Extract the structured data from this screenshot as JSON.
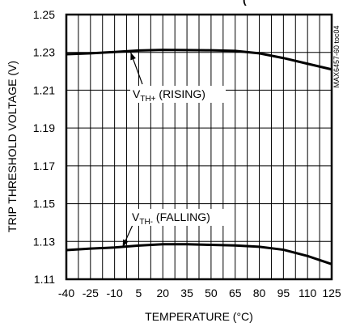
{
  "chart_data": {
    "type": "line",
    "title": "(",
    "xlabel": "TEMPERATURE (°C)",
    "ylabel": "TRIP THRESHOLD VOLTAGE (V)",
    "xlim": [
      -40,
      125
    ],
    "ylim": [
      1.11,
      1.25
    ],
    "x_ticks": [
      -40,
      -25,
      -10,
      5,
      20,
      35,
      50,
      65,
      80,
      95,
      110,
      125
    ],
    "x_tick_labels": [
      "-40",
      "-25",
      "-10",
      "5",
      "20",
      "35",
      "50",
      "65",
      "80",
      "95",
      "110",
      "125"
    ],
    "y_ticks": [
      1.11,
      1.13,
      1.15,
      1.17,
      1.19,
      1.21,
      1.23,
      1.25
    ],
    "y_tick_labels": [
      "1.11",
      "1.13",
      "1.15",
      "1.17",
      "1.19",
      "1.21",
      "1.23",
      "1.25"
    ],
    "grid": true,
    "legend": "none",
    "part_code": "MAX6457-60 toc04",
    "series": [
      {
        "x": [
          -40,
          -25,
          -10,
          5,
          20,
          35,
          50,
          65,
          80,
          95,
          110,
          125
        ],
        "y": [
          1.229,
          1.2295,
          1.2302,
          1.231,
          1.2313,
          1.2312,
          1.2311,
          1.2308,
          1.2295,
          1.227,
          1.224,
          1.221
        ]
      },
      {
        "x": [
          -40,
          -25,
          -10,
          5,
          20,
          35,
          50,
          65,
          80,
          95,
          110,
          125
        ],
        "y": [
          1.1254,
          1.1262,
          1.1268,
          1.1278,
          1.1285,
          1.1285,
          1.1282,
          1.1279,
          1.1272,
          1.1256,
          1.1223,
          1.118
        ]
      }
    ],
    "annotations": [
      {
        "main": "V",
        "sub": "TH+",
        "suffix": " (RISING)",
        "at": [
          0,
          1.23
        ]
      },
      {
        "main": "V",
        "sub": "TH-",
        "suffix": " (FALLING)",
        "at": [
          -5,
          1.127
        ]
      }
    ]
  }
}
